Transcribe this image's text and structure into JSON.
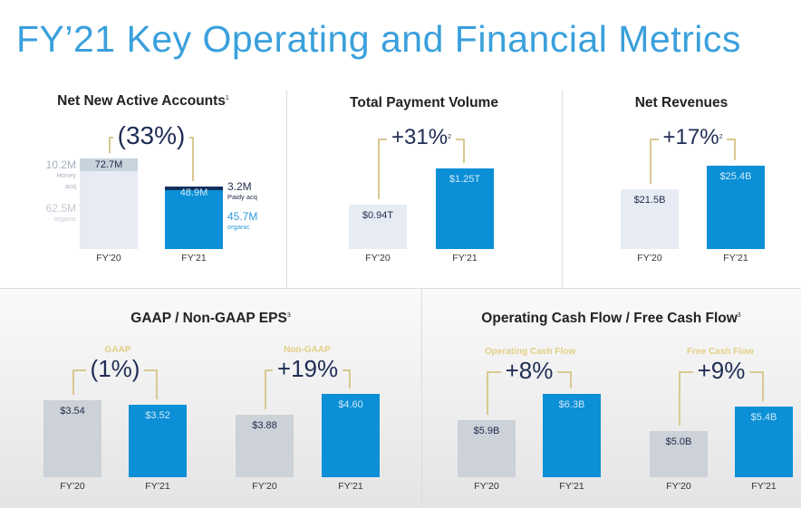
{
  "title": "FY’21 Key Operating and Financial Metrics",
  "colors": {
    "accent": "#3aa0dc",
    "fy21_bar": "#0b8fd6",
    "fy20_bar": "#e7ecf4",
    "bracket": "#d8c98f"
  },
  "chart_data": [
    {
      "type": "bar",
      "title": "Net New Active Accounts",
      "footnote": "1",
      "categories": [
        "FY’20",
        "FY’21"
      ],
      "values": [
        72.7,
        48.9
      ],
      "value_labels": [
        "72.7M",
        "48.9M"
      ],
      "growth": "(33%)",
      "components": {
        "FY’20": [
          {
            "label": "10.2M",
            "desc": "Honey acq",
            "value": 10.2
          },
          {
            "label": "62.5M",
            "desc": "organic",
            "value": 62.5
          }
        ],
        "FY’21": [
          {
            "label": "3.2M",
            "desc": "Paidy acq",
            "value": 3.2
          },
          {
            "label": "45.7M",
            "desc": "organic",
            "value": 45.7
          }
        ]
      }
    },
    {
      "type": "bar",
      "title": "Total Payment Volume",
      "categories": [
        "FY’20",
        "FY’21"
      ],
      "values": [
        0.94,
        1.25
      ],
      "value_labels": [
        "$0.94T",
        "$1.25T"
      ],
      "growth": "+31%",
      "growth_footnote": "2"
    },
    {
      "type": "bar",
      "title": "Net Revenues",
      "categories": [
        "FY’20",
        "FY’21"
      ],
      "values": [
        21.5,
        25.4
      ],
      "value_labels": [
        "$21.5B",
        "$25.4B"
      ],
      "growth": "+17%",
      "growth_footnote": "2"
    },
    {
      "type": "bar",
      "group": "GAAP / Non-GAAP EPS",
      "group_footnote": "3",
      "title": "GAAP",
      "categories": [
        "FY’20",
        "FY’21"
      ],
      "values": [
        3.54,
        3.52
      ],
      "value_labels": [
        "$3.54",
        "$3.52"
      ],
      "growth": "(1%)"
    },
    {
      "type": "bar",
      "group": "GAAP / Non-GAAP EPS",
      "title": "Non-GAAP",
      "categories": [
        "FY’20",
        "FY’21"
      ],
      "values": [
        3.88,
        4.6
      ],
      "value_labels": [
        "$3.88",
        "$4.60"
      ],
      "growth": "+19%"
    },
    {
      "type": "bar",
      "group": "Operating Cash Flow / Free Cash Flow",
      "group_footnote": "3",
      "title": "Operating Cash Flow",
      "categories": [
        "FY’20",
        "FY’21"
      ],
      "values": [
        5.9,
        6.3
      ],
      "value_labels": [
        "$5.9B",
        "$6.3B"
      ],
      "growth": "+8%"
    },
    {
      "type": "bar",
      "group": "Operating Cash Flow / Free Cash Flow",
      "title": "Free Cash Flow",
      "categories": [
        "FY’20",
        "FY’21"
      ],
      "values": [
        5.0,
        5.4
      ],
      "value_labels": [
        "$5.0B",
        "$5.4B"
      ],
      "growth": "+9%"
    }
  ]
}
